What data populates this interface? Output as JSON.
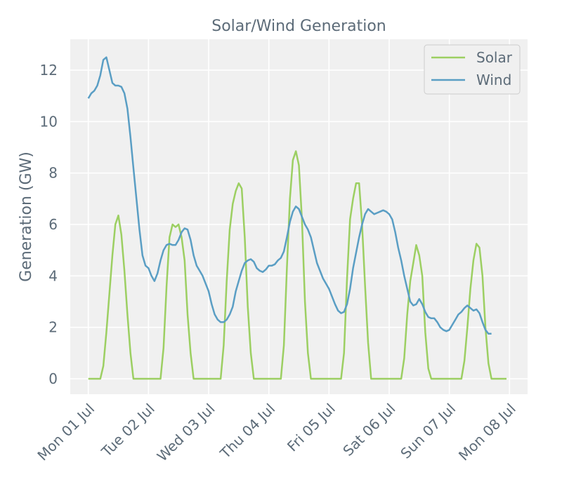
{
  "chart_data": {
    "type": "line",
    "title": "Solar/Wind Generation",
    "xlabel": "",
    "ylabel": "Generation (GW)",
    "x_unit": "days since Mon 01 Jul 00:00",
    "xlim": [
      -0.3,
      7.3
    ],
    "ylim": [
      -0.6,
      13.2
    ],
    "xticks": [
      {
        "value": 0,
        "label": "Mon 01 Jul"
      },
      {
        "value": 1,
        "label": "Tue 02 Jul"
      },
      {
        "value": 2,
        "label": "Wed 03 Jul"
      },
      {
        "value": 3,
        "label": "Thu 04 Jul"
      },
      {
        "value": 4,
        "label": "Fri 05 Jul"
      },
      {
        "value": 5,
        "label": "Sat 06 Jul"
      },
      {
        "value": 6,
        "label": "Sun 07 Jul"
      },
      {
        "value": 7,
        "label": "Mon 08 Jul"
      }
    ],
    "yticks": [
      0,
      2,
      4,
      6,
      8,
      10,
      12
    ],
    "grid": true,
    "legend_position": "top-right",
    "series": [
      {
        "name": "Solar",
        "color": "#9ccf62",
        "points": [
          [
            0,
            0
          ],
          [
            0.2,
            0
          ],
          [
            0.25,
            0.5
          ],
          [
            0.3,
            1.8
          ],
          [
            0.35,
            3.3
          ],
          [
            0.4,
            4.8
          ],
          [
            0.45,
            6.0
          ],
          [
            0.5,
            6.35
          ],
          [
            0.55,
            5.6
          ],
          [
            0.6,
            4.2
          ],
          [
            0.65,
            2.5
          ],
          [
            0.7,
            1.0
          ],
          [
            0.75,
            0
          ],
          [
            1,
            0
          ],
          [
            1.2,
            0
          ],
          [
            1.25,
            1.2
          ],
          [
            1.3,
            3.6
          ],
          [
            1.35,
            5.5
          ],
          [
            1.4,
            6.0
          ],
          [
            1.45,
            5.9
          ],
          [
            1.5,
            6.0
          ],
          [
            1.55,
            5.5
          ],
          [
            1.6,
            4.6
          ],
          [
            1.65,
            2.5
          ],
          [
            1.7,
            1.0
          ],
          [
            1.75,
            0
          ],
          [
            2,
            0
          ],
          [
            2.2,
            0
          ],
          [
            2.25,
            1.3
          ],
          [
            2.3,
            3.8
          ],
          [
            2.35,
            5.8
          ],
          [
            2.4,
            6.8
          ],
          [
            2.45,
            7.3
          ],
          [
            2.5,
            7.6
          ],
          [
            2.55,
            7.4
          ],
          [
            2.6,
            5.5
          ],
          [
            2.65,
            2.8
          ],
          [
            2.7,
            1.0
          ],
          [
            2.75,
            0
          ],
          [
            3,
            0
          ],
          [
            3.2,
            0
          ],
          [
            3.25,
            1.3
          ],
          [
            3.3,
            4.3
          ],
          [
            3.35,
            7.0
          ],
          [
            3.4,
            8.5
          ],
          [
            3.45,
            8.85
          ],
          [
            3.5,
            8.3
          ],
          [
            3.55,
            6.2
          ],
          [
            3.6,
            3.0
          ],
          [
            3.65,
            1.0
          ],
          [
            3.7,
            0
          ],
          [
            4,
            0
          ],
          [
            4.2,
            0
          ],
          [
            4.25,
            1.0
          ],
          [
            4.3,
            3.9
          ],
          [
            4.35,
            6.2
          ],
          [
            4.4,
            7.0
          ],
          [
            4.45,
            7.6
          ],
          [
            4.5,
            7.6
          ],
          [
            4.55,
            6.0
          ],
          [
            4.6,
            3.6
          ],
          [
            4.65,
            1.4
          ],
          [
            4.7,
            0
          ],
          [
            5,
            0
          ],
          [
            5.2,
            0
          ],
          [
            5.25,
            0.8
          ],
          [
            5.3,
            2.5
          ],
          [
            5.35,
            3.8
          ],
          [
            5.4,
            4.5
          ],
          [
            5.45,
            5.2
          ],
          [
            5.5,
            4.8
          ],
          [
            5.55,
            4.0
          ],
          [
            5.6,
            1.8
          ],
          [
            5.65,
            0.4
          ],
          [
            5.7,
            0
          ],
          [
            6,
            0
          ],
          [
            6.2,
            0
          ],
          [
            6.25,
            0.7
          ],
          [
            6.3,
            2.0
          ],
          [
            6.35,
            3.5
          ],
          [
            6.4,
            4.6
          ],
          [
            6.45,
            5.25
          ],
          [
            6.5,
            5.1
          ],
          [
            6.55,
            4.0
          ],
          [
            6.6,
            2.0
          ],
          [
            6.65,
            0.6
          ],
          [
            6.7,
            0
          ],
          [
            6.95,
            0
          ]
        ]
      },
      {
        "name": "Wind",
        "color": "#5a9ec4",
        "points": [
          [
            0,
            10.9
          ],
          [
            0.05,
            11.1
          ],
          [
            0.1,
            11.2
          ],
          [
            0.15,
            11.4
          ],
          [
            0.2,
            11.8
          ],
          [
            0.25,
            12.4
          ],
          [
            0.3,
            12.5
          ],
          [
            0.35,
            12.0
          ],
          [
            0.4,
            11.5
          ],
          [
            0.45,
            11.4
          ],
          [
            0.5,
            11.4
          ],
          [
            0.55,
            11.35
          ],
          [
            0.6,
            11.1
          ],
          [
            0.65,
            10.5
          ],
          [
            0.7,
            9.4
          ],
          [
            0.75,
            8.2
          ],
          [
            0.8,
            7.0
          ],
          [
            0.85,
            5.8
          ],
          [
            0.9,
            4.8
          ],
          [
            0.95,
            4.4
          ],
          [
            1.0,
            4.3
          ],
          [
            1.05,
            4.0
          ],
          [
            1.1,
            3.8
          ],
          [
            1.15,
            4.1
          ],
          [
            1.2,
            4.6
          ],
          [
            1.25,
            5.0
          ],
          [
            1.3,
            5.2
          ],
          [
            1.35,
            5.25
          ],
          [
            1.4,
            5.2
          ],
          [
            1.45,
            5.2
          ],
          [
            1.5,
            5.4
          ],
          [
            1.55,
            5.7
          ],
          [
            1.6,
            5.85
          ],
          [
            1.65,
            5.8
          ],
          [
            1.7,
            5.4
          ],
          [
            1.75,
            4.8
          ],
          [
            1.8,
            4.4
          ],
          [
            1.85,
            4.2
          ],
          [
            1.9,
            4.0
          ],
          [
            1.95,
            3.7
          ],
          [
            2.0,
            3.4
          ],
          [
            2.05,
            2.9
          ],
          [
            2.1,
            2.5
          ],
          [
            2.15,
            2.3
          ],
          [
            2.2,
            2.2
          ],
          [
            2.25,
            2.2
          ],
          [
            2.3,
            2.3
          ],
          [
            2.35,
            2.5
          ],
          [
            2.4,
            2.8
          ],
          [
            2.45,
            3.4
          ],
          [
            2.5,
            3.8
          ],
          [
            2.55,
            4.2
          ],
          [
            2.6,
            4.5
          ],
          [
            2.65,
            4.6
          ],
          [
            2.7,
            4.65
          ],
          [
            2.75,
            4.55
          ],
          [
            2.8,
            4.3
          ],
          [
            2.85,
            4.2
          ],
          [
            2.9,
            4.15
          ],
          [
            2.95,
            4.25
          ],
          [
            3.0,
            4.4
          ],
          [
            3.05,
            4.4
          ],
          [
            3.1,
            4.45
          ],
          [
            3.15,
            4.6
          ],
          [
            3.2,
            4.7
          ],
          [
            3.25,
            4.95
          ],
          [
            3.3,
            5.5
          ],
          [
            3.35,
            6.1
          ],
          [
            3.4,
            6.5
          ],
          [
            3.45,
            6.7
          ],
          [
            3.5,
            6.6
          ],
          [
            3.55,
            6.3
          ],
          [
            3.6,
            6.0
          ],
          [
            3.65,
            5.8
          ],
          [
            3.7,
            5.5
          ],
          [
            3.75,
            5.0
          ],
          [
            3.8,
            4.5
          ],
          [
            3.85,
            4.2
          ],
          [
            3.9,
            3.9
          ],
          [
            3.95,
            3.7
          ],
          [
            4.0,
            3.5
          ],
          [
            4.05,
            3.2
          ],
          [
            4.1,
            2.9
          ],
          [
            4.15,
            2.65
          ],
          [
            4.2,
            2.55
          ],
          [
            4.25,
            2.6
          ],
          [
            4.3,
            2.9
          ],
          [
            4.35,
            3.5
          ],
          [
            4.4,
            4.3
          ],
          [
            4.45,
            4.9
          ],
          [
            4.5,
            5.5
          ],
          [
            4.55,
            6.0
          ],
          [
            4.6,
            6.4
          ],
          [
            4.65,
            6.6
          ],
          [
            4.7,
            6.5
          ],
          [
            4.75,
            6.4
          ],
          [
            4.8,
            6.45
          ],
          [
            4.85,
            6.5
          ],
          [
            4.9,
            6.55
          ],
          [
            4.95,
            6.5
          ],
          [
            5.0,
            6.4
          ],
          [
            5.05,
            6.2
          ],
          [
            5.1,
            5.7
          ],
          [
            5.15,
            5.1
          ],
          [
            5.2,
            4.6
          ],
          [
            5.25,
            4.0
          ],
          [
            5.3,
            3.5
          ],
          [
            5.35,
            3.0
          ],
          [
            5.4,
            2.85
          ],
          [
            5.45,
            2.9
          ],
          [
            5.5,
            3.1
          ],
          [
            5.55,
            2.9
          ],
          [
            5.6,
            2.6
          ],
          [
            5.65,
            2.4
          ],
          [
            5.7,
            2.35
          ],
          [
            5.75,
            2.35
          ],
          [
            5.8,
            2.2
          ],
          [
            5.85,
            2.0
          ],
          [
            5.9,
            1.9
          ],
          [
            5.95,
            1.85
          ],
          [
            6.0,
            1.9
          ],
          [
            6.05,
            2.1
          ],
          [
            6.1,
            2.3
          ],
          [
            6.15,
            2.5
          ],
          [
            6.2,
            2.6
          ],
          [
            6.25,
            2.75
          ],
          [
            6.3,
            2.85
          ],
          [
            6.35,
            2.75
          ],
          [
            6.4,
            2.65
          ],
          [
            6.45,
            2.7
          ],
          [
            6.5,
            2.55
          ],
          [
            6.55,
            2.2
          ],
          [
            6.6,
            1.9
          ],
          [
            6.65,
            1.75
          ],
          [
            6.7,
            1.75
          ]
        ]
      }
    ]
  }
}
